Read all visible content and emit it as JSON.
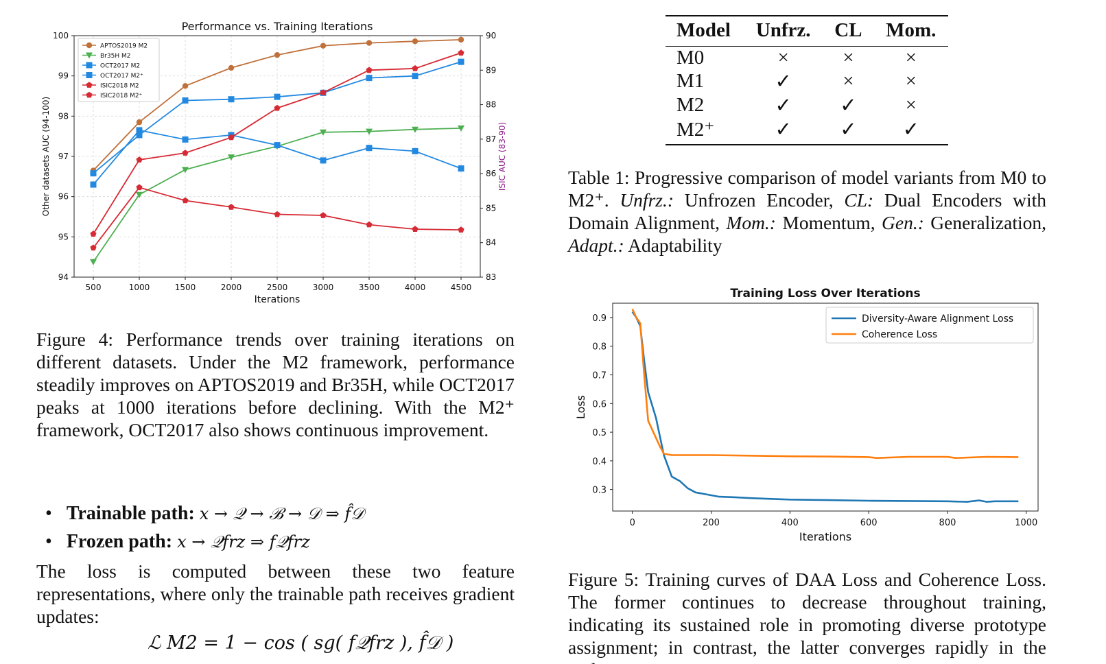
{
  "figure4": {
    "chart_data": {
      "type": "line",
      "title": "Performance vs. Training Iterations",
      "xlabel": "Iterations",
      "ylabel_left": "Other datasets AUC (94-100)",
      "ylabel_right": "ISIC AUC (83-90)",
      "x": [
        500,
        1000,
        1500,
        2000,
        2500,
        3000,
        3500,
        4000,
        4500
      ],
      "ylim_left": [
        94,
        100
      ],
      "ylim_right": [
        83,
        90
      ],
      "yticks_left": [
        "94",
        "95",
        "96",
        "97",
        "98",
        "99",
        "100"
      ],
      "yticks_right": [
        "83",
        "84",
        "85",
        "86",
        "87",
        "88",
        "89",
        "90"
      ],
      "xticks": [
        "500",
        "1000",
        "1500",
        "2000",
        "2500",
        "3000",
        "3500",
        "4000",
        "4500"
      ],
      "grid": true,
      "legend_position": "top-left",
      "series": [
        {
          "name": "APTOS2019 M2",
          "axis": "left",
          "color": "#c0703a",
          "marker": "circle",
          "values": [
            96.65,
            97.85,
            98.75,
            99.2,
            99.52,
            99.75,
            99.82,
            99.86,
            99.9
          ]
        },
        {
          "name": "Br35H M2",
          "axis": "left",
          "color": "#4caf50",
          "marker": "triangle",
          "values": [
            94.38,
            96.05,
            96.67,
            96.98,
            97.25,
            97.6,
            97.62,
            97.67,
            97.7
          ]
        },
        {
          "name": "OCT2017 M2",
          "axis": "left",
          "color": "#2389e0",
          "marker": "square",
          "values": [
            96.3,
            97.65,
            97.42,
            97.53,
            97.28,
            96.9,
            97.21,
            97.13,
            96.7
          ]
        },
        {
          "name": "OCT2017 M2⁺",
          "axis": "left",
          "color": "#2389e0",
          "marker": "square",
          "values": [
            96.58,
            97.53,
            98.39,
            98.42,
            98.48,
            98.58,
            98.95,
            99.0,
            99.35
          ]
        },
        {
          "name": "ISIC2018 M2",
          "axis": "right",
          "color": "#d62a34",
          "marker": "pentagon",
          "values": [
            83.85,
            85.6,
            85.22,
            85.03,
            84.82,
            84.79,
            84.52,
            84.39,
            84.37
          ]
        },
        {
          "name": "ISIC2018 M2⁺",
          "axis": "right",
          "color": "#d62a34",
          "marker": "pentagon",
          "values": [
            84.25,
            86.4,
            86.6,
            87.05,
            87.9,
            88.35,
            89.0,
            89.05,
            89.5
          ]
        }
      ]
    },
    "caption_label": "Figure 4:",
    "caption_text": "Performance trends over training iterations on different datasets. Under the M2 framework, performance steadily improves on APTOS2019 and Br35H, while OCT2017 peaks at 1000 iterations before declining. With the M2⁺ framework, OCT2017 also shows continuous improvement."
  },
  "figure5": {
    "chart_data": {
      "type": "line",
      "title": "Training Loss Over Iterations",
      "xlabel": "Iterations",
      "ylabel": "Loss",
      "xlim": [
        0,
        1000
      ],
      "ylim": [
        0.225,
        0.95
      ],
      "xticks": [
        "0",
        "200",
        "400",
        "600",
        "800",
        "1000"
      ],
      "yticks": [
        "0.3",
        "0.4",
        "0.5",
        "0.6",
        "0.7",
        "0.8",
        "0.9"
      ],
      "legend_position": "top-right",
      "series": [
        {
          "name": "Diversity-Aware Alignment Loss",
          "color": "#1f77b4",
          "x": [
            0,
            10,
            20,
            30,
            40,
            60,
            80,
            100,
            120,
            140,
            160,
            180,
            200,
            220,
            260,
            300,
            400,
            500,
            600,
            700,
            800,
            850,
            880,
            900,
            920,
            980
          ],
          "y": [
            0.92,
            0.9,
            0.87,
            0.75,
            0.64,
            0.55,
            0.42,
            0.345,
            0.33,
            0.305,
            0.29,
            0.285,
            0.28,
            0.275,
            0.273,
            0.27,
            0.265,
            0.263,
            0.261,
            0.26,
            0.259,
            0.257,
            0.262,
            0.257,
            0.259,
            0.259
          ]
        },
        {
          "name": "Coherence Loss",
          "color": "#ff7f0e",
          "x": [
            0,
            10,
            20,
            30,
            40,
            50,
            60,
            70,
            80,
            100,
            120,
            200,
            300,
            400,
            500,
            600,
            620,
            700,
            800,
            820,
            900,
            980
          ],
          "y": [
            0.93,
            0.9,
            0.88,
            0.7,
            0.54,
            0.51,
            0.48,
            0.45,
            0.425,
            0.42,
            0.42,
            0.42,
            0.418,
            0.416,
            0.415,
            0.413,
            0.41,
            0.414,
            0.414,
            0.41,
            0.414,
            0.413
          ]
        }
      ]
    },
    "caption_label": "Figure 5:",
    "caption_text": "Training curves of DAA Loss and Coherence Loss. The former continues to decrease throughout training, indicating its sustained role in promoting diverse prototype assignment; in contrast, the latter converges rapidly in the early"
  },
  "table1": {
    "headers": [
      "Model",
      "Unfrz.",
      "CL",
      "Mom."
    ],
    "rows": [
      [
        "M0",
        "×",
        "×",
        "×"
      ],
      [
        "M1",
        "✓",
        "×",
        "×"
      ],
      [
        "M2",
        "✓",
        "✓",
        "×"
      ],
      [
        "M2⁺",
        "✓",
        "✓",
        "✓"
      ]
    ],
    "caption_label": "Table 1:",
    "caption_parts": [
      "Progressive comparison of model variants from M0 to M2⁺. ",
      "Unfrz.:",
      " Unfrozen Encoder, ",
      "CL:",
      " Dual Encoders with Domain Alignment, ",
      "Mom.:",
      " Momentum, ",
      "Gen.:",
      " Generalization, ",
      "Adapt.:",
      " Adaptability"
    ]
  },
  "paths": [
    {
      "label": "Trainable path:",
      "expr": "x → 𝒬 → ℬ → 𝒟 ⇒ f̂𝒟"
    },
    {
      "label": "Frozen path:",
      "expr": "x → 𝒬frz ⇒ f𝒬frz"
    }
  ],
  "body_text": "The loss is computed between these two feature representations, where only the trainable path receives gradient updates:",
  "equation": "ℒ M2 = 1 − cos ( sg( f𝒬frz ), f̂𝒟 )"
}
